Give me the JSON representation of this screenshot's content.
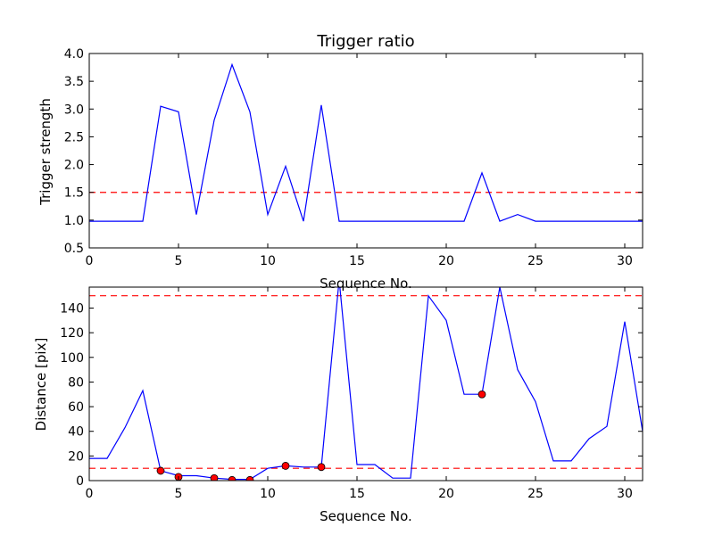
{
  "chart_data": [
    {
      "type": "line",
      "title": "Trigger ratio",
      "xlabel": "Sequence No.",
      "ylabel": "Trigger strength",
      "xlim": [
        0,
        31
      ],
      "ylim": [
        0.5,
        4.0
      ],
      "xticks": [
        "0",
        "5",
        "10",
        "15",
        "20",
        "25",
        "30"
      ],
      "yticks": [
        "0.5",
        "1.0",
        "1.5",
        "2.0",
        "2.5",
        "3.0",
        "3.5",
        "4.0"
      ],
      "grid": false,
      "series": [
        {
          "color": "#0000ff",
          "x": [
            0,
            1,
            2,
            3,
            4,
            5,
            6,
            7,
            8,
            9,
            10,
            11,
            12,
            13,
            14,
            15,
            16,
            17,
            18,
            19,
            20,
            21,
            22,
            23,
            24,
            25,
            26,
            27,
            28,
            29,
            30,
            31
          ],
          "y": [
            0.98,
            0.98,
            0.98,
            0.98,
            3.05,
            2.95,
            1.1,
            2.8,
            3.8,
            2.95,
            1.1,
            1.97,
            0.98,
            3.07,
            0.98,
            0.98,
            0.98,
            0.98,
            0.98,
            0.98,
            0.98,
            0.98,
            1.85,
            0.98,
            1.1,
            0.98,
            0.98,
            0.98,
            0.98,
            0.98,
            0.98,
            0.98
          ]
        }
      ],
      "hlines": [
        {
          "y": 1.5,
          "color": "#ff0000",
          "style": "dashed"
        }
      ]
    },
    {
      "type": "line",
      "title": "",
      "xlabel": "Sequence No.",
      "ylabel": "Distance [pix]",
      "xlim": [
        0,
        31
      ],
      "ylim": [
        0,
        157
      ],
      "xticks": [
        "0",
        "5",
        "10",
        "15",
        "20",
        "25",
        "30"
      ],
      "yticks": [
        "0",
        "20",
        "40",
        "60",
        "80",
        "100",
        "120",
        "140"
      ],
      "grid": false,
      "series": [
        {
          "color": "#0000ff",
          "x": [
            0,
            1,
            2,
            3,
            4,
            5,
            6,
            7,
            8,
            9,
            10,
            11,
            12,
            13,
            14,
            15,
            16,
            17,
            18,
            19,
            20,
            21,
            22,
            23,
            24,
            25,
            26,
            27,
            28,
            29,
            30,
            31
          ],
          "y": [
            18,
            18,
            43,
            73,
            8,
            4,
            4,
            2,
            1,
            1,
            10,
            12,
            11,
            11,
            163,
            13,
            13,
            2,
            2,
            150,
            130,
            70,
            70,
            157,
            90,
            64,
            16,
            16,
            34,
            44,
            129,
            40
          ]
        }
      ],
      "markers": {
        "color": "#ff0000",
        "x": [
          4,
          5,
          7,
          8,
          9,
          11,
          13,
          22
        ],
        "y": [
          8,
          3,
          2,
          0.5,
          0.5,
          12,
          11,
          70
        ]
      },
      "hlines": [
        {
          "y": 150,
          "color": "#ff0000",
          "style": "dashed"
        },
        {
          "y": 10,
          "color": "#ff0000",
          "style": "dashed"
        }
      ]
    }
  ]
}
